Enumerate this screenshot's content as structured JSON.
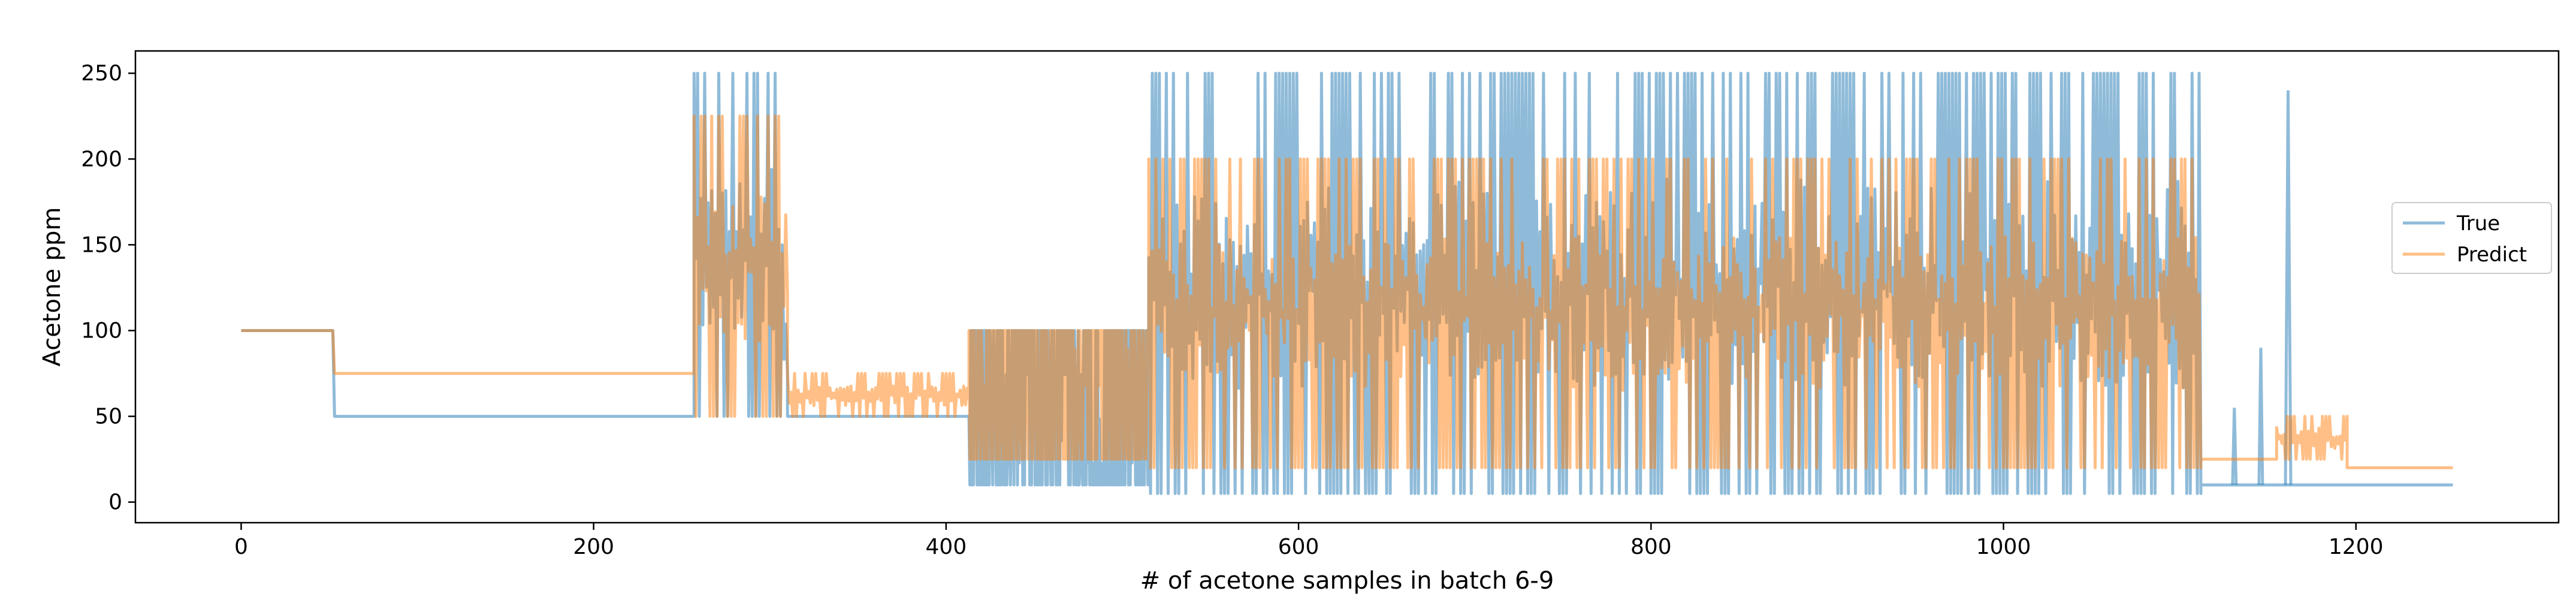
{
  "chart_data": {
    "type": "line",
    "title": "",
    "xlabel": "# of acetone samples in batch 6-9",
    "ylabel": "Acetone ppm",
    "xlim": [
      -60,
      1315
    ],
    "ylim": [
      -12,
      263
    ],
    "xticks": [
      0,
      200,
      400,
      600,
      800,
      1000,
      1200
    ],
    "yticks": [
      0,
      50,
      100,
      150,
      200,
      250
    ],
    "grid": false,
    "legend_position": "center-right",
    "series": [
      {
        "name": "True",
        "color": "#1f77b4",
        "opacity": 0.5,
        "segments": [
          {
            "x_start": 0,
            "x_end": 52,
            "pattern": "constant",
            "value": 100
          },
          {
            "x_start": 52,
            "x_end": 53,
            "pattern": "step",
            "from": 100,
            "to": 50
          },
          {
            "x_start": 53,
            "x_end": 257,
            "pattern": "constant",
            "value": 50
          },
          {
            "x_start": 257,
            "x_end": 305,
            "pattern": "oscillation",
            "low": 50,
            "high": 250
          },
          {
            "x_start": 305,
            "x_end": 310,
            "pattern": "oscillation",
            "low": 50,
            "high": 150
          },
          {
            "x_start": 310,
            "x_end": 413,
            "pattern": "constant",
            "value": 50
          },
          {
            "x_start": 413,
            "x_end": 515,
            "pattern": "dense-band",
            "low": 10,
            "high": 100
          },
          {
            "x_start": 515,
            "x_end": 1112,
            "pattern": "oscillation",
            "low": 5,
            "high": 250
          },
          {
            "x_start": 1112,
            "x_end": 1255,
            "pattern": "constant",
            "value": 10
          },
          {
            "x_start": 1130,
            "x_end": 1132,
            "pattern": "spike",
            "value": 55
          },
          {
            "x_start": 1145,
            "x_end": 1147,
            "pattern": "spike",
            "value": 90
          },
          {
            "x_start": 1160,
            "x_end": 1163,
            "pattern": "spike",
            "value": 240
          }
        ]
      },
      {
        "name": "Predict",
        "color": "#ff7f0e",
        "opacity": 0.5,
        "segments": [
          {
            "x_start": 0,
            "x_end": 52,
            "pattern": "constant",
            "value": 100
          },
          {
            "x_start": 52,
            "x_end": 53,
            "pattern": "step",
            "from": 100,
            "to": 75
          },
          {
            "x_start": 53,
            "x_end": 257,
            "pattern": "constant",
            "value": 75
          },
          {
            "x_start": 257,
            "x_end": 310,
            "pattern": "oscillation",
            "low": 50,
            "high": 225
          },
          {
            "x_start": 310,
            "x_end": 413,
            "pattern": "oscillation",
            "low": 50,
            "high": 75
          },
          {
            "x_start": 413,
            "x_end": 515,
            "pattern": "dense-band",
            "low": 25,
            "high": 100
          },
          {
            "x_start": 515,
            "x_end": 1112,
            "pattern": "oscillation",
            "low": 20,
            "high": 200
          },
          {
            "x_start": 1112,
            "x_end": 1155,
            "pattern": "constant",
            "value": 25
          },
          {
            "x_start": 1155,
            "x_end": 1195,
            "pattern": "oscillation",
            "low": 25,
            "high": 50
          },
          {
            "x_start": 1195,
            "x_end": 1255,
            "pattern": "constant",
            "value": 20
          }
        ]
      }
    ]
  }
}
